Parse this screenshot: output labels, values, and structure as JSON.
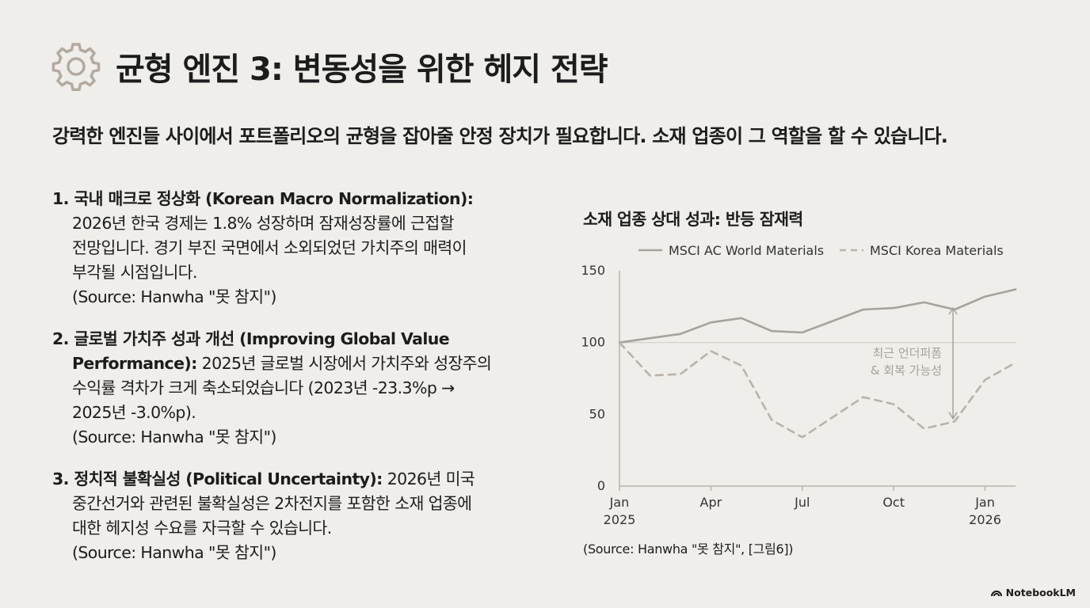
{
  "header": {
    "title": "균형 엔진 3: 변동성을 위한 헤지 전략",
    "icon": "gear-icon"
  },
  "subtitle": "강력한 엔진들 사이에서 포트폴리오의 균형을 잡아줄 안정 장치가 필요합니다. 소재 업종이 그 역할을 할 수 있습니다.",
  "points": [
    {
      "head": "1. 국내 매크로 정상화 (Korean Macro Normalization):",
      "lines": [
        "2026년 한국 경제는 1.8% 성장하며 잠재성장률에 근접할",
        "전망입니다. 경기 부진 국면에서 소외되었던 가치주의 매력이",
        "부각될 시점입니다.",
        "(Source: Hanwha \"못 참지\")"
      ]
    },
    {
      "head1": "2. 글로벌 가치주 성과 개선 (Improving Global Value",
      "head2": "Performance):",
      "rest2": " 2025년 글로벌 시장에서 가치주와 성장주의",
      "lines": [
        "수익률 격차가 크게 축소되었습니다 (2023년 -23.3%p →",
        "2025년 -3.0%p).",
        "(Source: Hanwha \"못 참지\")"
      ]
    },
    {
      "head": "3. 정치적 불확실성 (Political Uncertainty):",
      "rest": " 2026년 미국",
      "lines": [
        "중간선거와 관련된 불확실성은 2차전지를 포함한 소재 업종에",
        "대한 헤지성 수요를 자극할 수 있습니다.",
        "(Source: Hanwha \"못 참지\")"
      ]
    }
  ],
  "chart_data": {
    "type": "line",
    "title": "소재 업종 상대 성과: 반등 잠재력",
    "x": [
      "2025-01",
      "2025-02",
      "2025-03",
      "2025-04",
      "2025-05",
      "2025-06",
      "2025-07",
      "2025-08",
      "2025-09",
      "2025-10",
      "2025-11",
      "2025-12",
      "2026-01",
      "2026-02"
    ],
    "x_ticks": [
      {
        "line1": "Jan",
        "line2": "2025",
        "index": 0
      },
      {
        "line1": "Apr",
        "line2": "",
        "index": 3
      },
      {
        "line1": "Jul",
        "line2": "",
        "index": 6
      },
      {
        "line1": "Oct",
        "line2": "",
        "index": 9
      },
      {
        "line1": "Jan",
        "line2": "2026",
        "index": 12
      }
    ],
    "ylim": [
      0,
      150
    ],
    "y_ticks": [
      0,
      50,
      100,
      150
    ],
    "reference_line": 100,
    "series": [
      {
        "name": "MSCI AC World Materials",
        "style": "solid",
        "color": "#a8a29c",
        "values": [
          100,
          103,
          106,
          114,
          117,
          108,
          107,
          115,
          123,
          124,
          128,
          123,
          132,
          137
        ]
      },
      {
        "name": "MSCI Korea Materials",
        "style": "dashed",
        "color": "#bab3aa",
        "values": [
          100,
          77,
          78,
          94,
          84,
          46,
          34,
          48,
          62,
          57,
          40,
          45,
          74,
          86
        ]
      }
    ],
    "annotation": {
      "lines": [
        "최근 언더퍼폼",
        "& 회복 가능성"
      ],
      "from": 124,
      "to": 47,
      "at_index": 11
    },
    "legend_position": "top",
    "grid": false,
    "source": "(Source: Hanwha \"못 참지\", [그림6])"
  },
  "colors": {
    "background": "#efeeea",
    "axis": "#b9b4ad",
    "annotation": "#a8a29c"
  },
  "branding": {
    "label": "NotebookLM",
    "icon": "notebooklm-logo-icon"
  }
}
